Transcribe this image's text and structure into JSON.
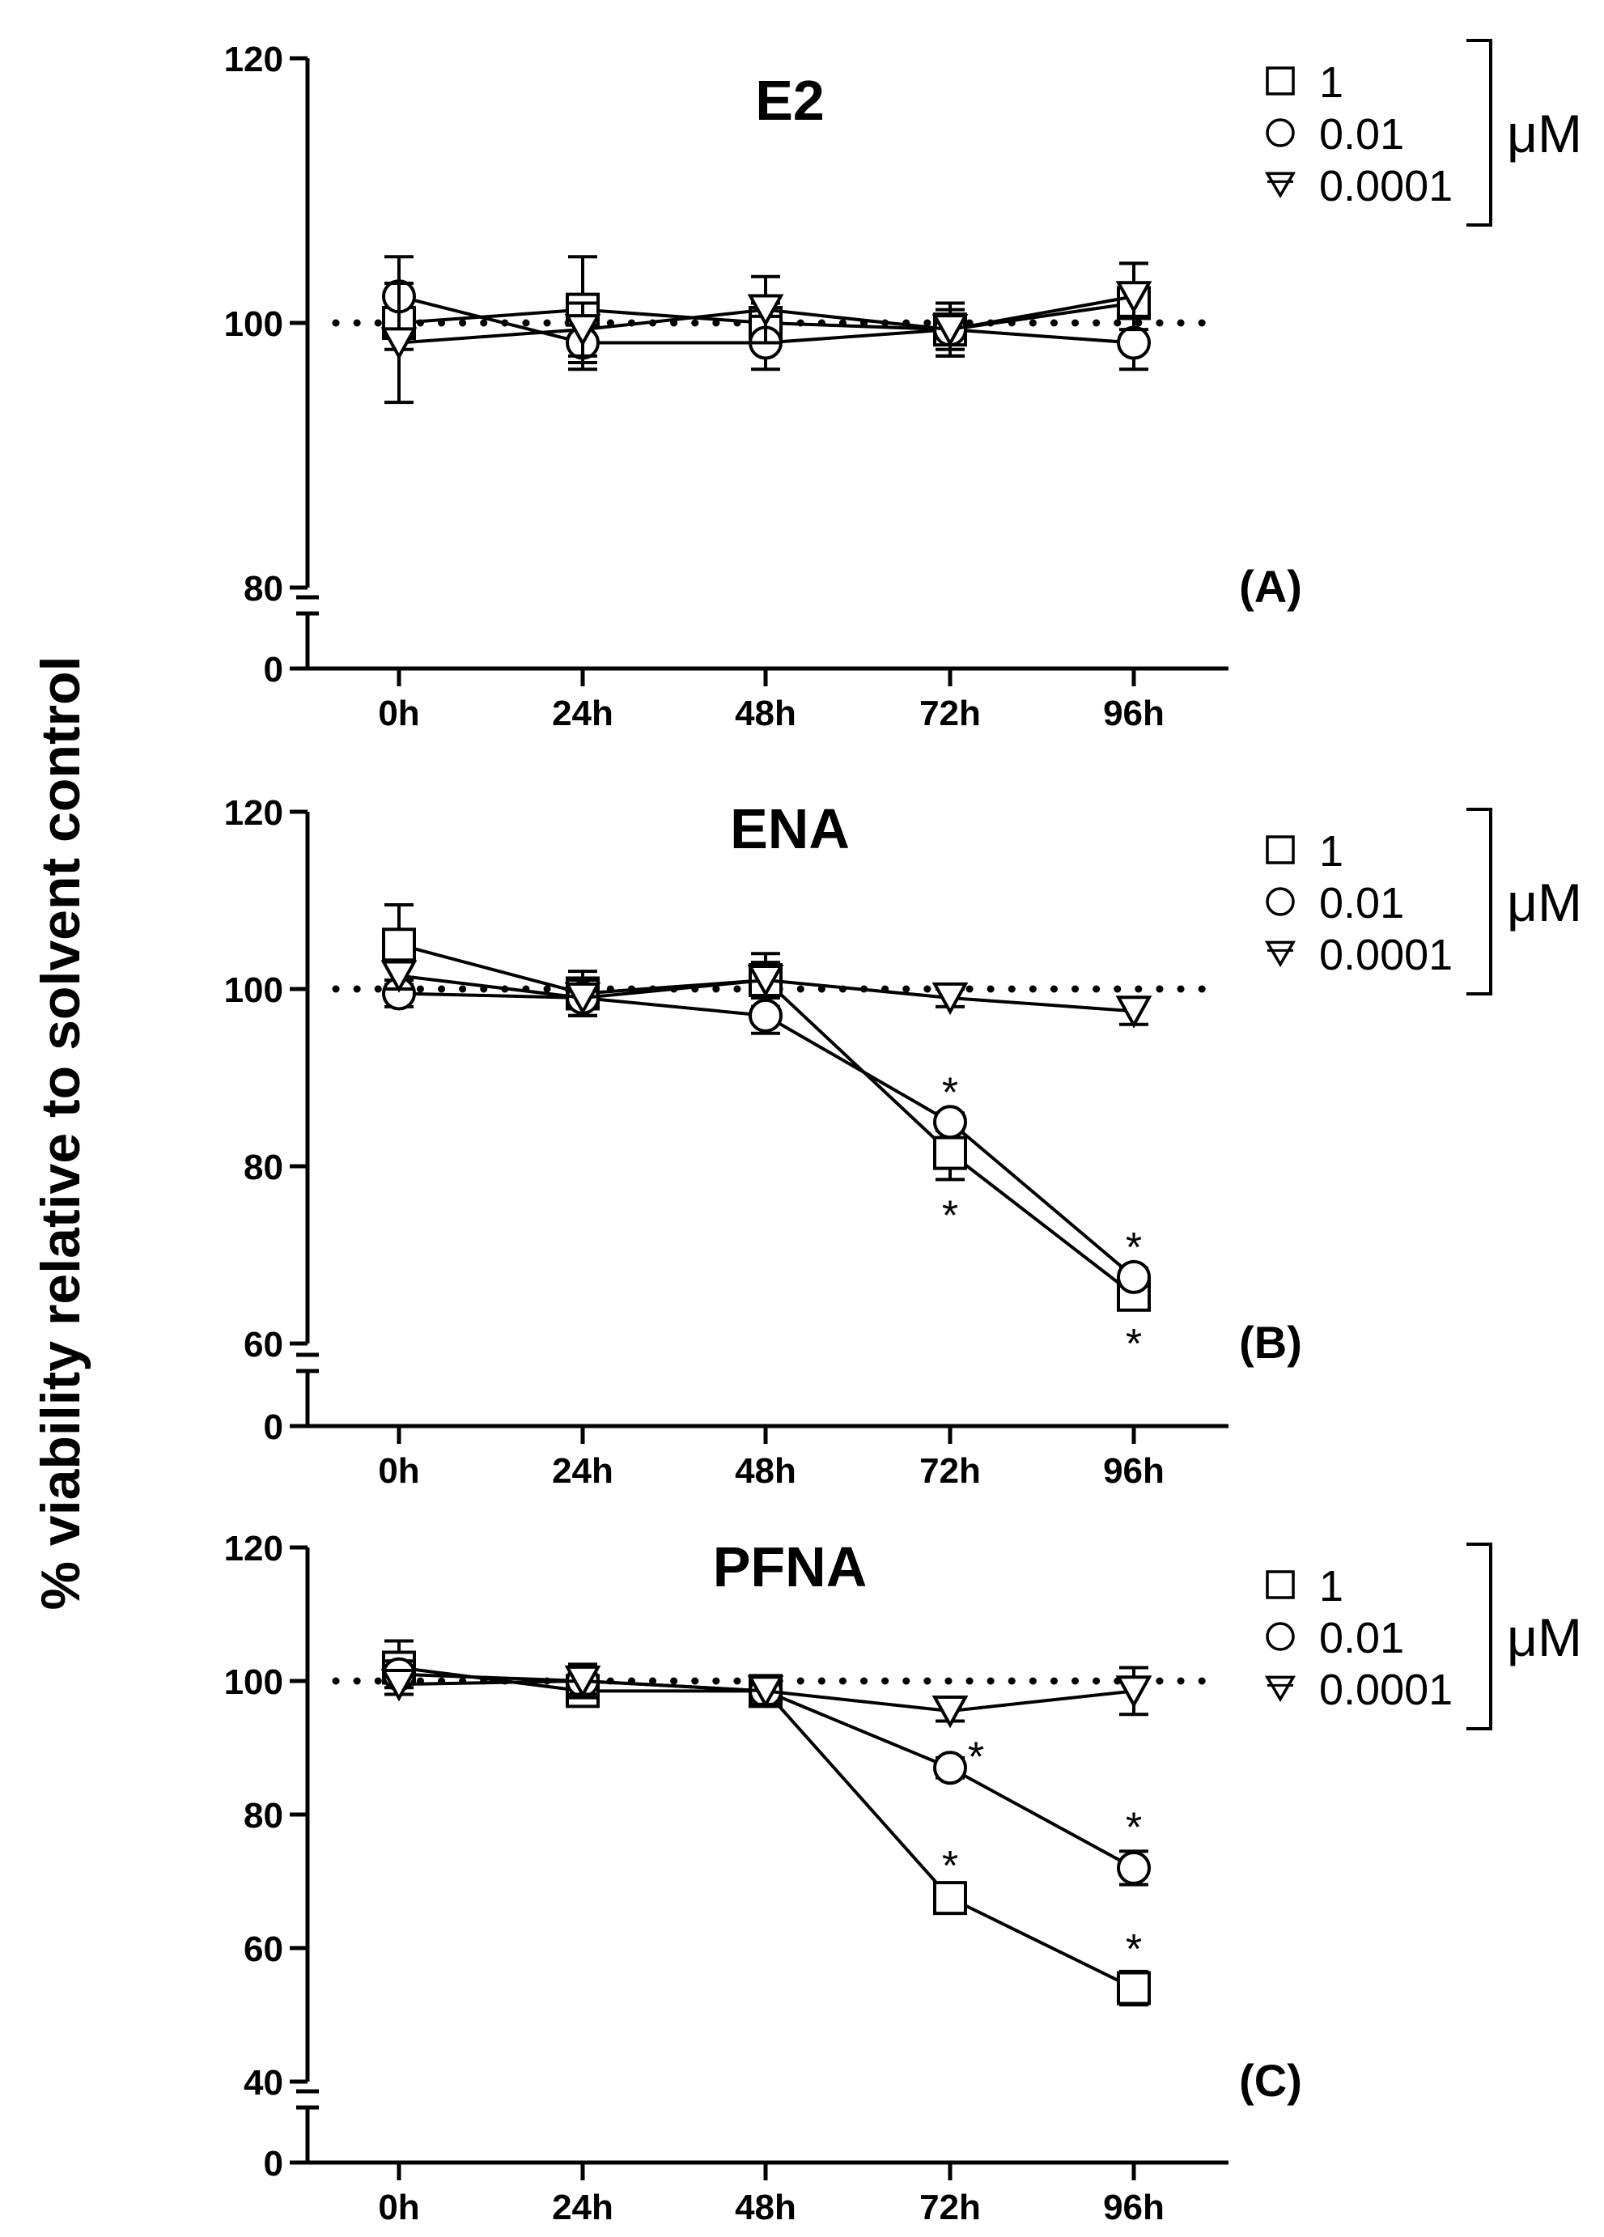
{
  "chart_data": {
    "type": "line",
    "ylabel": "% viability relative to solvent control",
    "categories": [
      "0h",
      "24h",
      "48h",
      "72h",
      "96h"
    ],
    "unit": "μM",
    "panels": [
      {
        "title": "E2",
        "letter": "(A)",
        "ylim": [
          80,
          120
        ],
        "yticks": [
          80,
          100,
          120
        ],
        "broken_axis_zero": "0",
        "reference_line": 100,
        "series": [
          {
            "name": "1",
            "marker": "square",
            "values": [
              100,
              101,
              100,
              99.5,
              101.5
            ],
            "errors": [
              2,
              4,
              1.5,
              2,
              3
            ],
            "stars": [
              false,
              false,
              false,
              false,
              false
            ]
          },
          {
            "name": "0.01",
            "marker": "circle",
            "values": [
              102,
              98.5,
              98.5,
              99.5,
              98.5
            ],
            "errors": [
              3,
              2,
              2,
              2,
              2
            ],
            "stars": [
              false,
              false,
              false,
              false,
              false
            ]
          },
          {
            "name": "0.0001",
            "marker": "triangle-down",
            "values": [
              98.5,
              99.5,
              101,
              99.5,
              102
            ],
            "errors": [
              4.5,
              2,
              2.5,
              1.5,
              2.5
            ],
            "stars": [
              false,
              false,
              false,
              false,
              false
            ]
          }
        ]
      },
      {
        "title": "ENA",
        "letter": "(B)",
        "ylim": [
          60,
          120
        ],
        "yticks": [
          60,
          80,
          100,
          120
        ],
        "broken_axis_zero": "0",
        "reference_line": 100,
        "series": [
          {
            "name": "1",
            "marker": "square",
            "values": [
              105,
              99.5,
              101,
              81.5,
              65.5
            ],
            "errors": [
              4.5,
              2.5,
              3,
              3,
              1.5
            ],
            "stars": [
              false,
              false,
              false,
              true,
              true
            ]
          },
          {
            "name": "0.01",
            "marker": "circle",
            "values": [
              99.5,
              99,
              97,
              85,
              67.5
            ],
            "errors": [
              1.5,
              2,
              2,
              1,
              1
            ],
            "stars": [
              false,
              false,
              false,
              true,
              true
            ]
          },
          {
            "name": "0.0001",
            "marker": "triangle-down",
            "values": [
              101.5,
              99,
              101,
              99,
              97.5
            ],
            "errors": [
              1.5,
              2,
              2,
              1,
              1.5
            ],
            "stars": [
              false,
              false,
              false,
              false,
              false
            ]
          }
        ]
      },
      {
        "title": "PFNA",
        "letter": "(C)",
        "ylim": [
          40,
          120
        ],
        "yticks": [
          40,
          60,
          80,
          100,
          120
        ],
        "broken_axis_zero": "0",
        "reference_line": 100,
        "series": [
          {
            "name": "1",
            "marker": "square",
            "values": [
              102,
              98.5,
              98.5,
              67.5,
              54
            ],
            "errors": [
              4,
              2,
              2,
              1.5,
              2.5
            ],
            "stars": [
              false,
              false,
              false,
              true,
              true
            ]
          },
          {
            "name": "0.01",
            "marker": "circle",
            "values": [
              101,
              100,
              98.5,
              87,
              72
            ],
            "errors": [
              2,
              2.5,
              1.5,
              1.5,
              2.5
            ],
            "stars": [
              false,
              false,
              false,
              true,
              true
            ]
          },
          {
            "name": "0.0001",
            "marker": "triangle-down",
            "values": [
              99.5,
              100,
              98.5,
              95.5,
              98.5
            ],
            "errors": [
              1.5,
              2,
              2,
              1.5,
              3.5
            ],
            "stars": [
              false,
              false,
              false,
              false,
              false
            ]
          }
        ]
      }
    ]
  }
}
